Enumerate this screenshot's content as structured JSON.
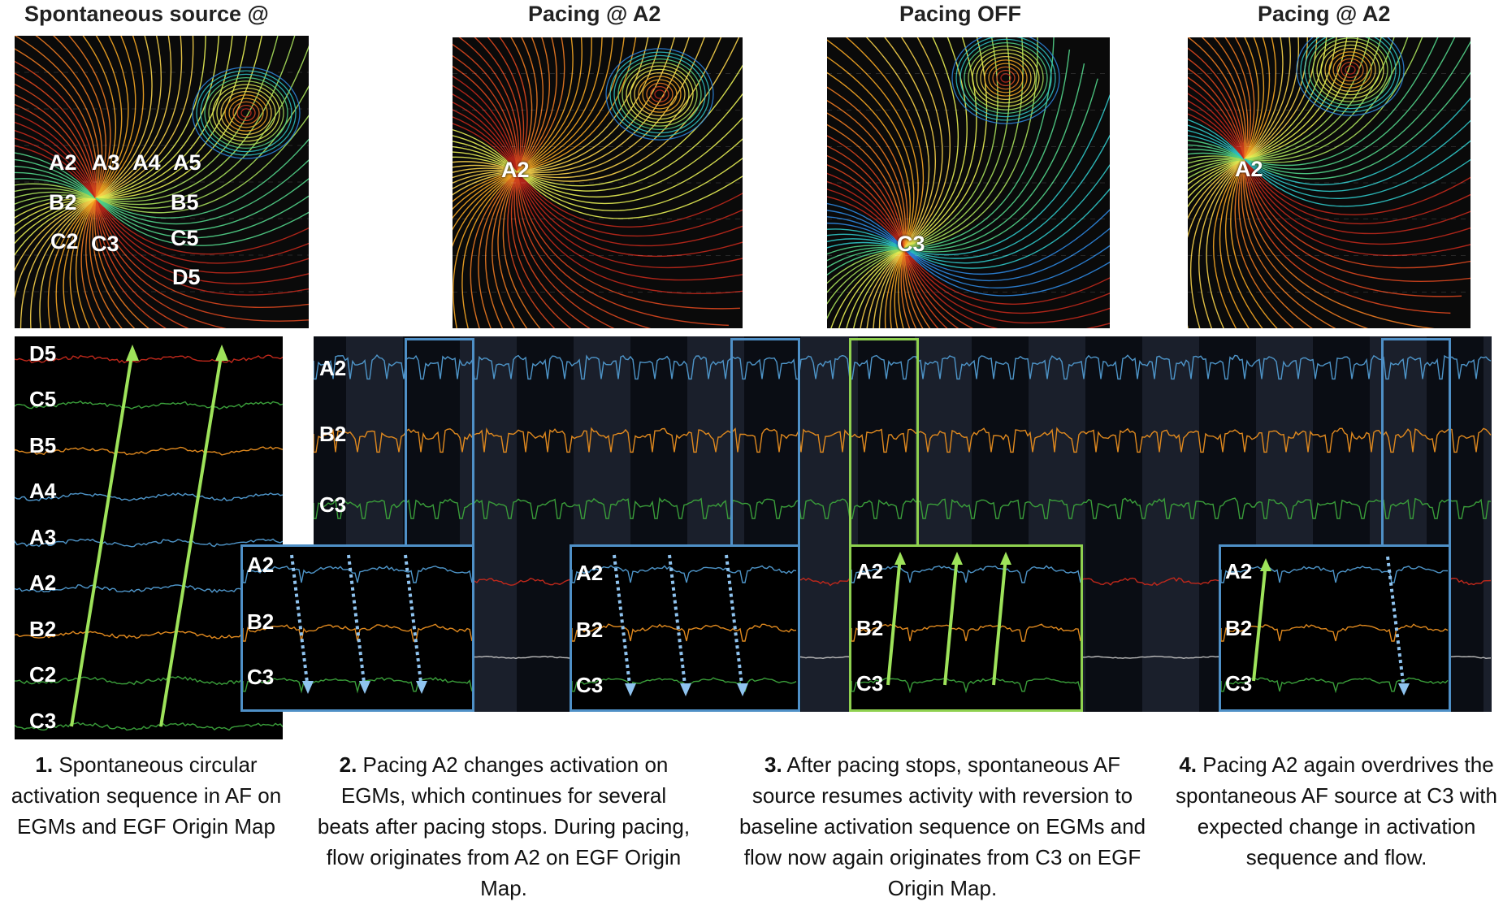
{
  "panels": [
    {
      "title": "Spontaneous source @"
    },
    {
      "title": "Pacing @ A2"
    },
    {
      "title": "Pacing OFF"
    },
    {
      "title": "Pacing @ A2"
    }
  ],
  "map1_labels": [
    "A2",
    "A3",
    "A4",
    "A5",
    "B2",
    "B5",
    "C2",
    "C3",
    "C5",
    "D5"
  ],
  "map2_label": "A2",
  "map3_label": "C3",
  "map4_label": "A2",
  "left_egm_channels": [
    "D5",
    "C5",
    "B5",
    "A4",
    "A3",
    "A2",
    "B2",
    "C2",
    "C3"
  ],
  "main_egm_channels": [
    "A2",
    "B2",
    "C3"
  ],
  "inset_channels": [
    "A2",
    "B2",
    "C3"
  ],
  "captions": [
    {
      "num": "1.",
      "text": "Spontaneous circular activation sequence in AF on EGMs and EGF Origin Map"
    },
    {
      "num": "2.",
      "text": "Pacing A2 changes activation on EGMs, which continues for several beats after pacing stops.  During pacing, flow originates from A2 on EGF Origin Map."
    },
    {
      "num": "3.",
      "text": "After pacing stops, spontaneous AF source resumes activity with reversion to baseline activation sequence on EGMs and flow now again originates from C3 on EGF Origin Map."
    },
    {
      "num": "4.",
      "text": "Pacing A2 again overdrives the spontaneous AF source at C3 with expected change in activation sequence and flow."
    }
  ],
  "colors": {
    "blue_box": "#4f90c7",
    "green_box": "#8fd14f",
    "arrow_green": "#9ee35a",
    "arrow_blue": "#8fc3ef"
  }
}
